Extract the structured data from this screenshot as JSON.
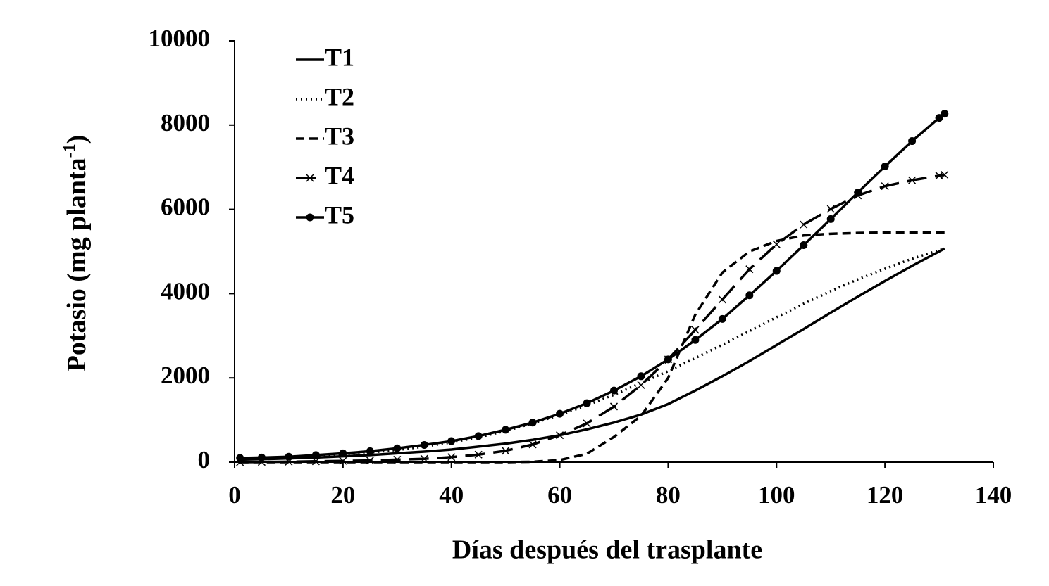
{
  "chart_data": {
    "type": "line",
    "x_label": "Días después del trasplante",
    "y_label": {
      "text": "Potasio (mg planta",
      "superscript": "-1",
      "suffix": ")"
    },
    "x": [
      1,
      5,
      10,
      15,
      20,
      25,
      30,
      35,
      40,
      45,
      50,
      55,
      60,
      65,
      70,
      75,
      80,
      85,
      90,
      95,
      100,
      105,
      110,
      115,
      120,
      125,
      130,
      131
    ],
    "series": [
      {
        "name": "T1",
        "color": "#000000",
        "dash": "solid",
        "marker": "none",
        "values": [
          60,
          70,
          90,
          110,
          140,
          170,
          210,
          250,
          300,
          370,
          440,
          530,
          640,
          780,
          940,
          1130,
          1380,
          1700,
          2040,
          2400,
          2780,
          3160,
          3550,
          3930,
          4300,
          4660,
          5000,
          5070
        ]
      },
      {
        "name": "T2",
        "color": "#000000",
        "dash": "dotted",
        "marker": "none",
        "values": [
          80,
          90,
          110,
          140,
          180,
          230,
          290,
          370,
          470,
          590,
          740,
          920,
          1120,
          1350,
          1600,
          1880,
          2160,
          2470,
          2790,
          3110,
          3440,
          3760,
          4060,
          4340,
          4590,
          4830,
          5030,
          5070
        ]
      },
      {
        "name": "T3",
        "color": "#000000",
        "dash": "dashed",
        "marker": "none",
        "values": [
          0,
          0,
          0,
          0,
          0,
          0,
          0,
          0,
          0,
          0,
          0,
          10,
          50,
          200,
          600,
          1100,
          2000,
          3500,
          4500,
          5000,
          5250,
          5380,
          5420,
          5440,
          5450,
          5450,
          5450,
          5450
        ]
      },
      {
        "name": "T4",
        "color": "#000000",
        "dash": "longdash",
        "marker": "x",
        "values": [
          0,
          5,
          10,
          20,
          30,
          40,
          60,
          80,
          120,
          180,
          270,
          420,
          640,
          920,
          1320,
          1830,
          2440,
          3140,
          3860,
          4580,
          5170,
          5640,
          6010,
          6330,
          6550,
          6690,
          6800,
          6820
        ]
      },
      {
        "name": "T5",
        "color": "#000000",
        "dash": "solid",
        "marker": "circle",
        "values": [
          100,
          110,
          130,
          170,
          210,
          260,
          330,
          410,
          500,
          620,
          770,
          940,
          1150,
          1400,
          1700,
          2040,
          2440,
          2900,
          3400,
          3960,
          4540,
          5150,
          5770,
          6400,
          7020,
          7620,
          8170,
          8270
        ]
      }
    ],
    "xlim": [
      0,
      140
    ],
    "xticks": [
      0,
      20,
      40,
      60,
      80,
      100,
      120,
      140
    ],
    "ylim": [
      0,
      10000
    ],
    "yticks": [
      0,
      2000,
      4000,
      6000,
      8000,
      10000
    ],
    "legend": "top-left"
  }
}
